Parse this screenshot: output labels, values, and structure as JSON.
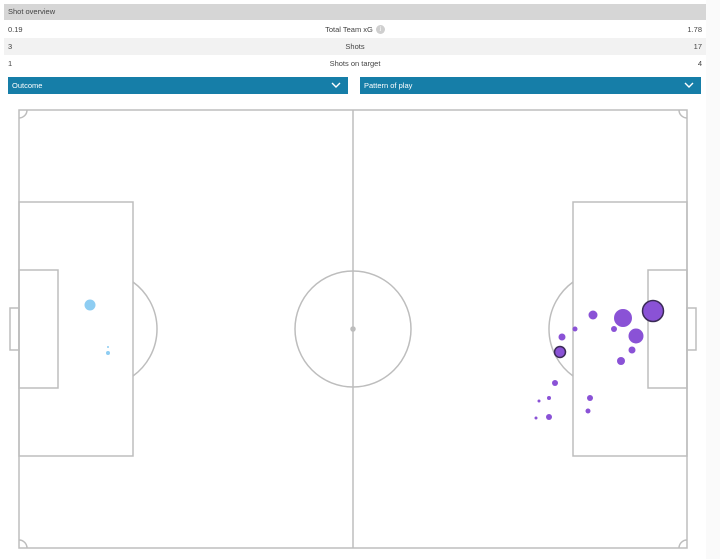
{
  "header": {
    "title": "Shot overview"
  },
  "stats": [
    {
      "left": "0.19",
      "label": "Total Team xG",
      "right": "1.78",
      "has_info": true
    },
    {
      "left": "3",
      "label": "Shots",
      "right": "17",
      "has_info": false
    },
    {
      "left": "1",
      "label": "Shots on target",
      "right": "4",
      "has_info": false
    }
  ],
  "filters": {
    "outcome_label": "Outcome",
    "pattern_label": "Pattern of play"
  },
  "colors": {
    "home_shot": "#8ecdf2",
    "away_shot": "#8a52d6",
    "goal_stroke": "#3a2a55",
    "pitch_line": "#bdbdbd",
    "dropdown": "#167ea8"
  },
  "icons": {
    "info": "info-icon",
    "chevron": "chevron-down-icon"
  }
}
